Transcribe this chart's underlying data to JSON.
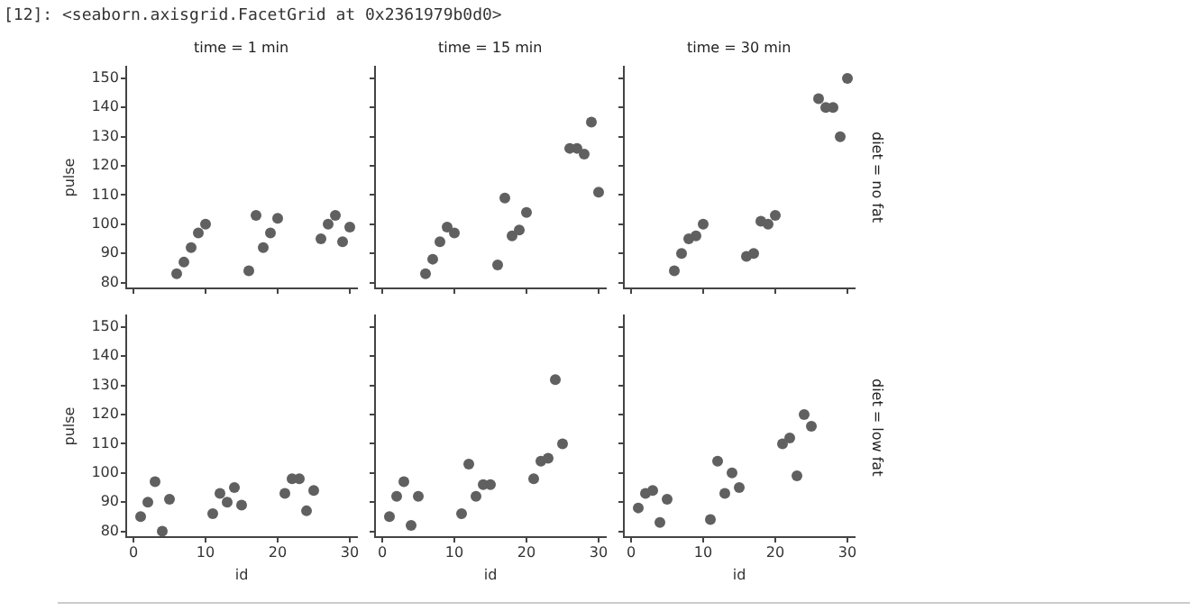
{
  "chart_data": [
    {
      "type": "scatter",
      "title": "time = 1 min",
      "ylabel": "pulse",
      "annotations": [
        "[12]: <seaborn.axisgrid.FacetGrid at 0x2361979b0d0>"
      ],
      "tick_labels": "y",
      "marker": "circle",
      "grid": false,
      "xlim": [
        -1,
        31
      ],
      "ylim": [
        78,
        154
      ],
      "xticks": [
        0,
        10,
        20,
        30
      ],
      "yticks": [
        80,
        90,
        100,
        110,
        120,
        130,
        140,
        150
      ],
      "series": [
        {
          "color": "#606060",
          "x": [
            6,
            7,
            8,
            9,
            10,
            16,
            17,
            18,
            19,
            20,
            26,
            27,
            28,
            29,
            30
          ],
          "values": [
            83,
            87,
            92,
            97,
            100,
            84,
            103,
            92,
            97,
            102,
            95,
            100,
            103,
            94,
            99
          ]
        }
      ]
    },
    {
      "type": "scatter",
      "title": "time = 15 min",
      "tick_labels": false,
      "marker": "circle",
      "grid": false,
      "xlim": [
        -1,
        31
      ],
      "ylim": [
        78,
        154
      ],
      "xticks": [
        0,
        10,
        20,
        30
      ],
      "yticks": [
        80,
        90,
        100,
        110,
        120,
        130,
        140,
        150
      ],
      "series": [
        {
          "color": "#606060",
          "x": [
            6,
            7,
            8,
            9,
            10,
            16,
            17,
            18,
            19,
            20,
            26,
            27,
            28,
            29,
            30
          ],
          "values": [
            83,
            88,
            94,
            99,
            97,
            86,
            109,
            96,
            98,
            104,
            126,
            126,
            124,
            135,
            111
          ]
        }
      ]
    },
    {
      "type": "scatter",
      "title": "time = 30 min",
      "annotations": [
        "diet = no fat"
      ],
      "tick_labels": false,
      "marker": "circle",
      "grid": false,
      "xlim": [
        -1,
        31
      ],
      "ylim": [
        78,
        154
      ],
      "xticks": [
        0,
        10,
        20,
        30
      ],
      "yticks": [
        80,
        90,
        100,
        110,
        120,
        130,
        140,
        150
      ],
      "series": [
        {
          "color": "#606060",
          "x": [
            6,
            7,
            8,
            9,
            10,
            16,
            17,
            18,
            19,
            20,
            26,
            27,
            28,
            29,
            30
          ],
          "values": [
            84,
            90,
            95,
            96,
            100,
            89,
            90,
            101,
            100,
            103,
            143,
            140,
            140,
            130,
            150
          ]
        }
      ]
    },
    {
      "type": "scatter",
      "xlabel": "id",
      "ylabel": "pulse",
      "marker": "circle",
      "grid": false,
      "xlim": [
        -1,
        31
      ],
      "ylim": [
        78,
        154
      ],
      "xticks": [
        0,
        10,
        20,
        30
      ],
      "yticks": [
        80,
        90,
        100,
        110,
        120,
        130,
        140,
        150
      ],
      "series": [
        {
          "color": "#606060",
          "x": [
            1,
            2,
            3,
            4,
            5,
            11,
            12,
            13,
            14,
            15,
            21,
            22,
            23,
            24,
            25
          ],
          "values": [
            85,
            90,
            97,
            80,
            91,
            86,
            93,
            90,
            95,
            89,
            93,
            98,
            98,
            87,
            94
          ]
        }
      ]
    },
    {
      "type": "scatter",
      "xlabel": "id",
      "tick_labels": "x",
      "marker": "circle",
      "grid": false,
      "xlim": [
        -1,
        31
      ],
      "ylim": [
        78,
        154
      ],
      "xticks": [
        0,
        10,
        20,
        30
      ],
      "yticks": [
        80,
        90,
        100,
        110,
        120,
        130,
        140,
        150
      ],
      "series": [
        {
          "color": "#606060",
          "x": [
            1,
            2,
            3,
            4,
            5,
            11,
            12,
            13,
            14,
            15,
            21,
            22,
            23,
            24,
            25
          ],
          "values": [
            85,
            92,
            97,
            82,
            92,
            86,
            103,
            92,
            96,
            96,
            98,
            104,
            105,
            132,
            110
          ]
        }
      ]
    },
    {
      "type": "scatter",
      "xlabel": "id",
      "annotations": [
        "diet = low fat"
      ],
      "tick_labels": "x",
      "marker": "circle",
      "grid": false,
      "xlim": [
        -1,
        31
      ],
      "ylim": [
        78,
        154
      ],
      "xticks": [
        0,
        10,
        20,
        30
      ],
      "yticks": [
        80,
        90,
        100,
        110,
        120,
        130,
        140,
        150
      ],
      "series": [
        {
          "color": "#606060",
          "x": [
            1,
            2,
            3,
            4,
            5,
            11,
            12,
            13,
            14,
            15,
            21,
            22,
            23,
            24,
            25
          ],
          "values": [
            88,
            93,
            94,
            83,
            91,
            84,
            104,
            93,
            100,
            95,
            110,
            112,
            99,
            120,
            116
          ]
        }
      ]
    }
  ]
}
